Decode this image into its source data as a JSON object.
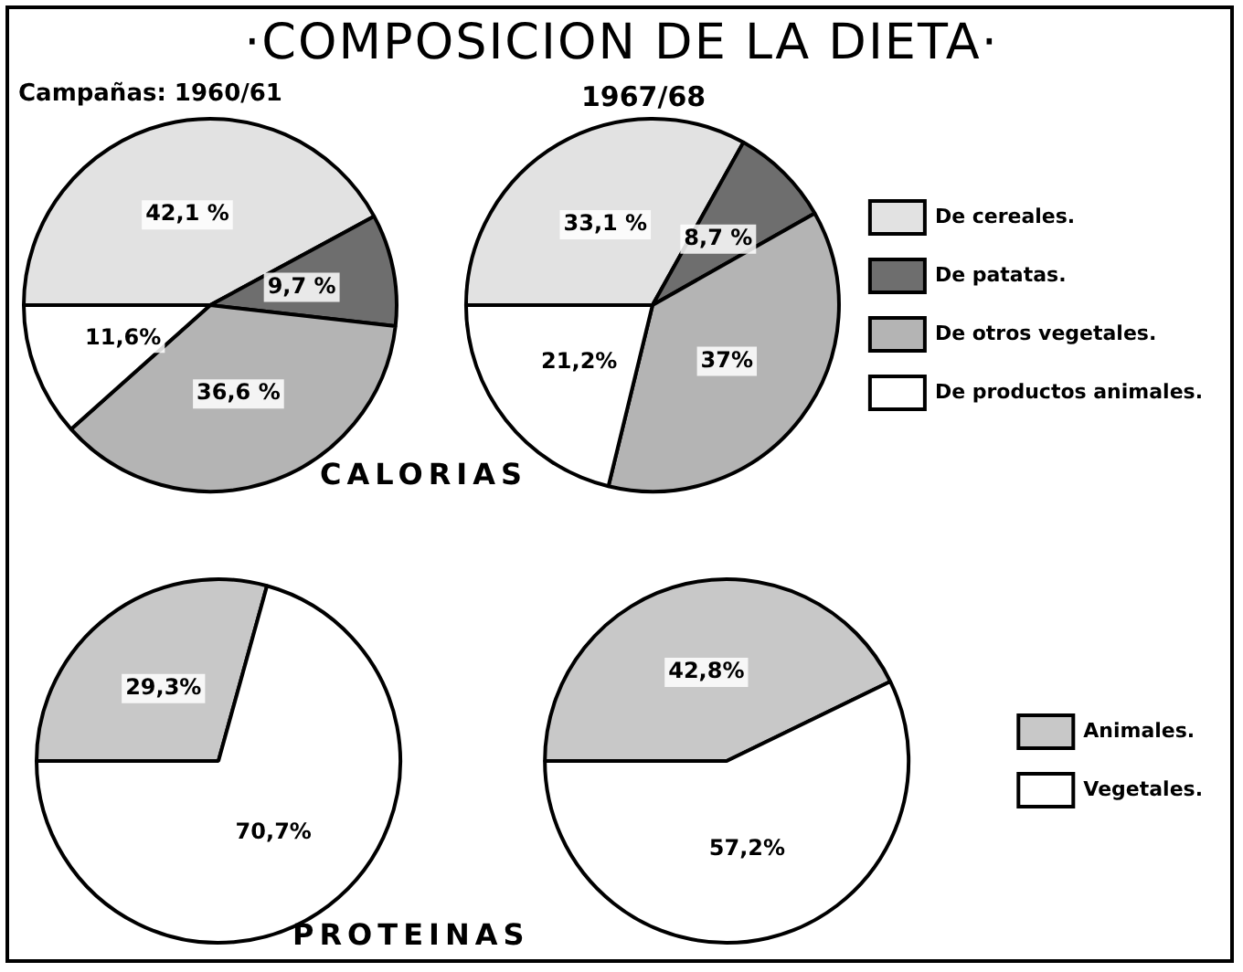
{
  "chart_data": [
    {
      "type": "pie",
      "title": "·COMPOSICION DE LA DIETA·",
      "subtitle": "Campañas: 1960/61",
      "annotations": [
        "CALORIAS"
      ],
      "categories": [
        null,
        null,
        null,
        null
      ],
      "values": [
        42.1,
        9.7,
        36.6,
        11.6
      ],
      "colors": [
        "#e2e2e2",
        "#6e6e6e",
        "#b4b4b4",
        "#ffffff"
      ],
      "value_labels": [
        "42,1 %",
        "9,7 %",
        "36,6 %",
        "11,6%"
      ],
      "legend": false
    },
    {
      "type": "pie",
      "subtitle": "1967/68",
      "categories": [
        "De cereales.",
        "De patatas.",
        "De otros vegetales.",
        "De productos animales."
      ],
      "values": [
        33.1,
        8.7,
        37,
        21.2
      ],
      "colors": [
        "#e2e2e2",
        "#6e6e6e",
        "#b4b4b4",
        "#ffffff"
      ],
      "value_labels": [
        "33,1 %",
        "8,7 %",
        "37%",
        "21,2%"
      ],
      "legend": "right"
    },
    {
      "type": "pie",
      "annotations": [
        "PROTEINAS"
      ],
      "categories": [
        null,
        null
      ],
      "values": [
        29.3,
        70.7
      ],
      "colors": [
        "#c8c8c8",
        "#ffffff"
      ],
      "value_labels": [
        "29,3%",
        "70,7%"
      ],
      "legend": false
    },
    {
      "type": "pie",
      "categories": [
        "Animales.",
        "Vegetales."
      ],
      "values": [
        42.8,
        57.2
      ],
      "colors": [
        "#c8c8c8",
        "#ffffff"
      ],
      "value_labels": [
        "42,8%",
        "57,2%"
      ],
      "legend": "right"
    }
  ]
}
